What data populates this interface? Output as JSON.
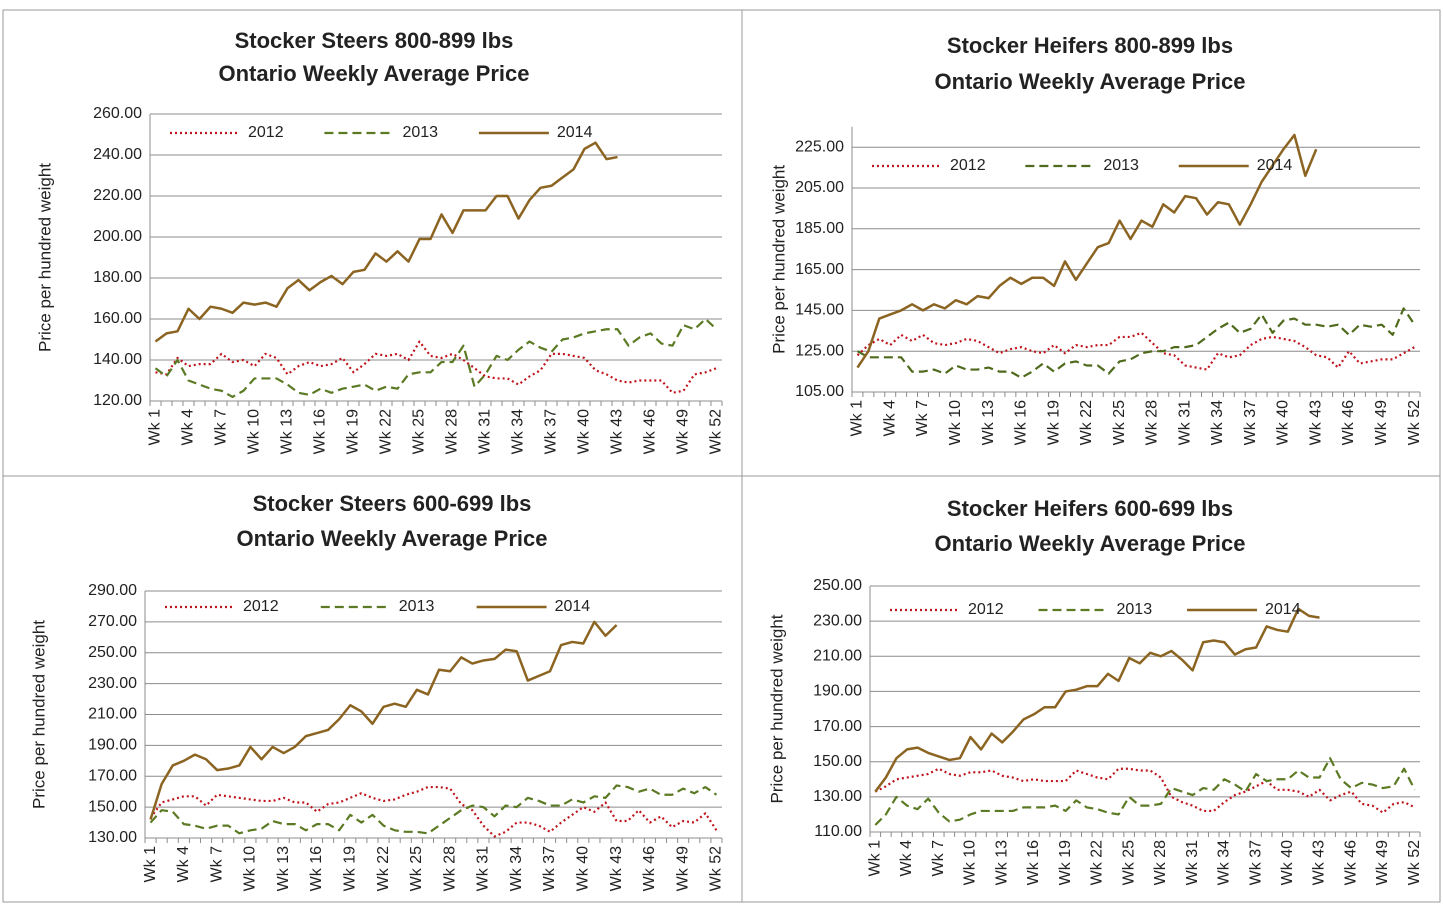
{
  "chart_data": [
    {
      "type": "line",
      "title": "Stocker Steers 800-899 lbs",
      "subtitle": "Ontario Weekly Average Price",
      "y_label": "Price per hundred weight",
      "categories": [
        "Wk 1",
        null,
        null,
        "Wk 4",
        null,
        null,
        "Wk 7",
        null,
        null,
        "Wk 10",
        null,
        null,
        "Wk 13",
        null,
        null,
        "Wk 16",
        null,
        null,
        "Wk 19",
        null,
        null,
        "Wk 22",
        null,
        null,
        "Wk 25",
        null,
        null,
        "Wk 28",
        null,
        null,
        "Wk 31",
        null,
        null,
        "Wk 34",
        null,
        null,
        "Wk 37",
        null,
        null,
        "Wk 40",
        null,
        null,
        "Wk 43",
        null,
        null,
        "Wk 46",
        null,
        null,
        "Wk 49",
        null,
        null,
        "Wk 52"
      ],
      "ylim": [
        120,
        260
      ],
      "yticks": [
        {
          "value": 120,
          "label": "120.00"
        },
        {
          "value": 140,
          "label": "140.00"
        },
        {
          "value": 160,
          "label": "160.00"
        },
        {
          "value": 180,
          "label": "180.00"
        },
        {
          "value": 200,
          "label": "200.00"
        },
        {
          "value": 220,
          "label": "220.00"
        },
        {
          "value": 240,
          "label": "240.00"
        },
        {
          "value": 260,
          "label": "260.00"
        }
      ],
      "grid": true,
      "legend": "top",
      "series": [
        {
          "name": "2012",
          "color": "#c0141c",
          "dash": "dotted",
          "values": [
            134,
            133,
            141,
            137,
            138,
            138,
            143,
            139,
            140,
            137,
            143,
            141,
            133,
            137,
            139,
            137,
            138,
            141,
            134,
            138,
            143,
            142,
            143,
            140,
            149,
            142,
            141,
            143,
            140,
            136,
            132,
            131,
            131,
            128,
            132,
            135,
            143,
            143,
            142,
            141,
            135,
            133,
            130,
            129,
            130,
            130,
            130,
            124,
            125,
            133,
            134,
            136
          ]
        },
        {
          "name": "2013",
          "color": "#5b7a23",
          "dash": "dashed",
          "values": [
            136,
            132,
            140,
            130,
            128,
            126,
            125,
            122,
            125,
            131,
            131,
            131,
            128,
            124,
            123,
            126,
            124,
            126,
            127,
            128,
            125,
            127,
            126,
            133,
            134,
            134,
            139,
            139,
            147,
            127,
            133,
            142,
            140,
            145,
            149,
            146,
            144,
            150,
            151,
            153,
            154,
            155,
            155,
            147,
            151,
            153,
            148,
            147,
            157,
            155,
            160,
            155
          ]
        },
        {
          "name": "2014",
          "color": "#8c6422",
          "dash": "solid",
          "values": [
            149,
            153,
            154,
            165,
            160,
            166,
            165,
            163,
            168,
            167,
            168,
            166,
            175,
            179,
            174,
            178,
            181,
            177,
            183,
            184,
            192,
            188,
            193,
            188,
            199,
            199,
            211,
            202,
            213,
            213,
            213,
            220,
            220,
            209,
            218,
            224,
            225,
            229,
            233,
            243,
            246,
            238,
            239,
            null,
            null,
            null,
            null,
            null,
            null,
            null,
            null,
            null
          ]
        }
      ]
    },
    {
      "type": "line",
      "title": "Stocker Heifers 800-899 lbs",
      "subtitle": "Ontario Weekly Average Price",
      "y_label": "Price per hundred weight",
      "categories": [
        "Wk 1",
        null,
        null,
        "Wk 4",
        null,
        null,
        "Wk 7",
        null,
        null,
        "Wk 10",
        null,
        null,
        "Wk 13",
        null,
        null,
        "Wk 16",
        null,
        null,
        "Wk 19",
        null,
        null,
        "Wk 22",
        null,
        null,
        "Wk 25",
        null,
        null,
        "Wk 28",
        null,
        null,
        "Wk 31",
        null,
        null,
        "Wk 34",
        null,
        null,
        "Wk 37",
        null,
        null,
        "Wk 40",
        null,
        null,
        "Wk 43",
        null,
        null,
        "Wk 46",
        null,
        null,
        "Wk 49",
        null,
        null,
        "Wk 52"
      ],
      "ylim": [
        105,
        235
      ],
      "yticks": [
        {
          "value": 105,
          "label": "105.00"
        },
        {
          "value": 125,
          "label": "125.00"
        },
        {
          "value": 145,
          "label": "145.00"
        },
        {
          "value": 165,
          "label": "165.00"
        },
        {
          "value": 185,
          "label": "185.00"
        },
        {
          "value": 205,
          "label": "205.00"
        },
        {
          "value": 225,
          "label": "225.00"
        }
      ],
      "grid": true,
      "legend": "top",
      "series": [
        {
          "name": "2012",
          "color": "#c0141c",
          "dash": "dotted",
          "values": [
            123,
            128,
            131,
            128,
            133,
            130,
            133,
            129,
            128,
            129,
            131,
            130,
            127,
            124,
            126,
            127,
            125,
            124,
            128,
            124,
            128,
            127,
            128,
            128,
            132,
            132,
            134,
            129,
            124,
            123,
            118,
            117,
            116,
            124,
            122,
            123,
            128,
            131,
            132,
            131,
            130,
            127,
            123,
            122,
            117,
            125,
            119,
            120,
            121,
            121,
            124,
            127
          ]
        },
        {
          "name": "2013",
          "color": "#4f6a1c",
          "dash": "dashed",
          "values": [
            125,
            122,
            122,
            122,
            122,
            115,
            115,
            116,
            114,
            118,
            116,
            116,
            117,
            115,
            115,
            112,
            115,
            119,
            115,
            119,
            120,
            118,
            118,
            114,
            120,
            121,
            124,
            125,
            125,
            127,
            127,
            128,
            132,
            136,
            139,
            134,
            136,
            143,
            134,
            140,
            141,
            138,
            138,
            137,
            138,
            133,
            138,
            137,
            138,
            133,
            146,
            138
          ]
        },
        {
          "name": "2014",
          "color": "#8c6422",
          "dash": "solid",
          "values": [
            117,
            125,
            141,
            143,
            145,
            148,
            145,
            148,
            146,
            150,
            148,
            152,
            151,
            157,
            161,
            158,
            161,
            161,
            157,
            169,
            160,
            168,
            176,
            178,
            189,
            180,
            189,
            186,
            197,
            193,
            201,
            200,
            192,
            198,
            197,
            187,
            197,
            208,
            216,
            224,
            231,
            211,
            224,
            null,
            null,
            null,
            null,
            null,
            null,
            null,
            null,
            null
          ]
        }
      ]
    },
    {
      "type": "line",
      "title": "Stocker Steers 600-699 lbs",
      "subtitle": "Ontario Weekly Average Price",
      "y_label": "Price per hundred weight",
      "categories": [
        "Wk 1",
        null,
        null,
        "Wk 4",
        null,
        null,
        "Wk 7",
        null,
        null,
        "Wk 10",
        null,
        null,
        "Wk 13",
        null,
        null,
        "Wk 16",
        null,
        null,
        "Wk 19",
        null,
        null,
        "Wk 22",
        null,
        null,
        "Wk 25",
        null,
        null,
        "Wk 28",
        null,
        null,
        "Wk 31",
        null,
        null,
        "Wk 34",
        null,
        null,
        "Wk 37",
        null,
        null,
        "Wk 40",
        null,
        null,
        "Wk 43",
        null,
        null,
        "Wk 46",
        null,
        null,
        "Wk 49",
        null,
        null,
        "Wk 52"
      ],
      "ylim": [
        130,
        290
      ],
      "yticks": [
        {
          "value": 130,
          "label": "130.00"
        },
        {
          "value": 150,
          "label": "150.00"
        },
        {
          "value": 170,
          "label": "170.00"
        },
        {
          "value": 190,
          "label": "190.00"
        },
        {
          "value": 210,
          "label": "210.00"
        },
        {
          "value": 230,
          "label": "230.00"
        },
        {
          "value": 250,
          "label": "250.00"
        },
        {
          "value": 270,
          "label": "270.00"
        },
        {
          "value": 290,
          "label": "290.00"
        }
      ],
      "grid": true,
      "legend": "top",
      "series": [
        {
          "name": "2012",
          "color": "#c0141c",
          "dash": "dotted",
          "values": [
            143,
            153,
            155,
            157,
            157,
            151,
            158,
            157,
            156,
            155,
            154,
            154,
            156,
            153,
            153,
            147,
            152,
            153,
            156,
            159,
            156,
            154,
            155,
            158,
            160,
            163,
            163,
            162,
            152,
            148,
            138,
            131,
            134,
            140,
            140,
            138,
            134,
            140,
            145,
            150,
            147,
            153,
            141,
            141,
            148,
            140,
            144,
            137,
            141,
            140,
            146,
            135
          ]
        },
        {
          "name": "2013",
          "color": "#5b7a23",
          "dash": "dashed",
          "values": [
            140,
            148,
            147,
            139,
            138,
            136,
            138,
            138,
            133,
            135,
            136,
            141,
            139,
            139,
            135,
            139,
            139,
            135,
            145,
            140,
            145,
            138,
            135,
            134,
            134,
            133,
            138,
            143,
            148,
            151,
            150,
            144,
            151,
            150,
            156,
            154,
            151,
            151,
            155,
            153,
            157,
            156,
            164,
            163,
            160,
            162,
            158,
            158,
            162,
            159,
            163,
            158
          ]
        },
        {
          "name": "2014",
          "color": "#8c6422",
          "dash": "solid",
          "values": [
            142,
            165,
            177,
            180,
            184,
            181,
            174,
            175,
            177,
            189,
            181,
            189,
            185,
            189,
            196,
            198,
            200,
            207,
            216,
            212,
            204,
            215,
            217,
            215,
            226,
            223,
            239,
            238,
            247,
            243,
            245,
            246,
            252,
            251,
            232,
            235,
            238,
            255,
            257,
            256,
            270,
            261,
            268,
            null,
            null,
            null,
            null,
            null,
            null,
            null,
            null,
            null
          ]
        }
      ]
    },
    {
      "type": "line",
      "title": "Stocker Heifers 600-699 lbs",
      "subtitle": "Ontario Weekly Average Price",
      "y_label": "Price per hundred weight",
      "categories": [
        "Wk 1",
        null,
        null,
        "Wk 4",
        null,
        null,
        "Wk 7",
        null,
        null,
        "Wk 10",
        null,
        null,
        "Wk 13",
        null,
        null,
        "Wk 16",
        null,
        null,
        "Wk 19",
        null,
        null,
        "Wk 22",
        null,
        null,
        "Wk 25",
        null,
        null,
        "Wk 28",
        null,
        null,
        "Wk 31",
        null,
        null,
        "Wk 34",
        null,
        null,
        "Wk 37",
        null,
        null,
        "Wk 40",
        null,
        null,
        "Wk 43",
        null,
        null,
        "Wk 46",
        null,
        null,
        "Wk 49",
        null,
        null,
        "Wk 52"
      ],
      "ylim": [
        110,
        250
      ],
      "yticks": [
        {
          "value": 110,
          "label": "110.00"
        },
        {
          "value": 130,
          "label": "130.00"
        },
        {
          "value": 150,
          "label": "150.00"
        },
        {
          "value": 170,
          "label": "170.00"
        },
        {
          "value": 190,
          "label": "190.00"
        },
        {
          "value": 210,
          "label": "210.00"
        },
        {
          "value": 230,
          "label": "230.00"
        },
        {
          "value": 250,
          "label": "250.00"
        }
      ],
      "grid": true,
      "legend": "top",
      "series": [
        {
          "name": "2012",
          "color": "#c0141c",
          "dash": "dotted",
          "values": [
            133,
            136,
            140,
            141,
            142,
            143,
            146,
            143,
            142,
            144,
            144,
            145,
            142,
            141,
            139,
            140,
            139,
            139,
            139,
            145,
            143,
            141,
            140,
            146,
            146,
            145,
            145,
            141,
            130,
            127,
            125,
            122,
            122,
            127,
            131,
            133,
            136,
            139,
            134,
            134,
            133,
            130,
            134,
            128,
            131,
            133,
            126,
            125,
            121,
            126,
            127,
            124
          ]
        },
        {
          "name": "2013",
          "color": "#5b7a23",
          "dash": "dashed",
          "values": [
            114,
            120,
            130,
            125,
            123,
            129,
            121,
            116,
            117,
            120,
            122,
            122,
            122,
            122,
            124,
            124,
            124,
            125,
            122,
            128,
            124,
            123,
            121,
            120,
            130,
            125,
            125,
            126,
            135,
            133,
            131,
            135,
            134,
            140,
            137,
            133,
            143,
            139,
            140,
            140,
            145,
            141,
            141,
            152,
            140,
            135,
            138,
            137,
            135,
            136,
            146,
            134
          ]
        },
        {
          "name": "2014",
          "color": "#8c6422",
          "dash": "solid",
          "values": [
            133,
            141,
            152,
            157,
            158,
            155,
            153,
            151,
            152,
            164,
            157,
            166,
            161,
            167,
            174,
            177,
            181,
            181,
            190,
            191,
            193,
            193,
            200,
            196,
            209,
            206,
            212,
            210,
            213,
            208,
            202,
            218,
            219,
            218,
            211,
            214,
            215,
            227,
            225,
            224,
            237,
            233,
            232,
            null,
            null,
            null,
            null,
            null,
            null,
            null,
            null,
            null
          ]
        }
      ]
    }
  ]
}
